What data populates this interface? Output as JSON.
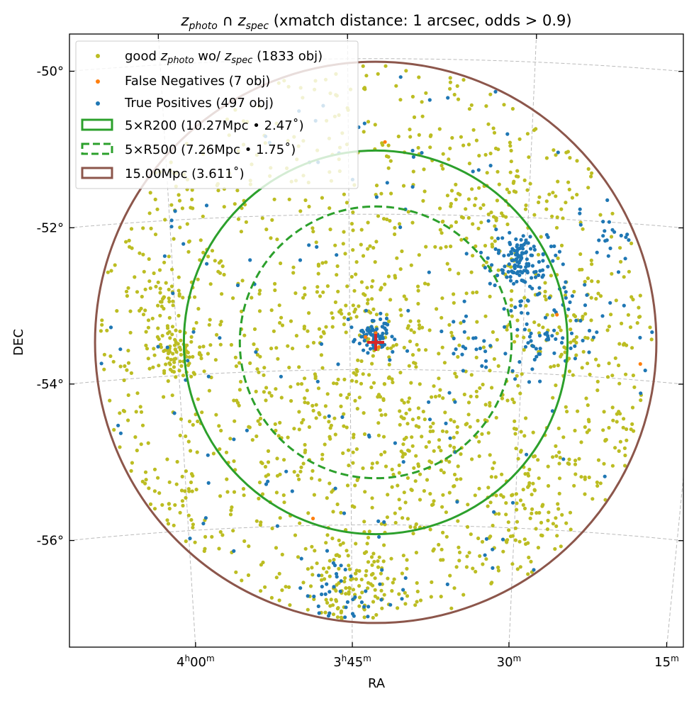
{
  "chart_data": {
    "type": "scatter",
    "title": {
      "z1": "z",
      "s1": "photo",
      "mid": " ∩ ",
      "z2": "z",
      "s2": "spec",
      "rest": " (xmatch distance: 1 arcsec, odds > 0.9)"
    },
    "xlabel": "RA",
    "ylabel": "DEC",
    "projection_center": {
      "ra_deg": 55.69,
      "dec_deg": -53.65
    },
    "x_ticks": [
      {
        "ra_deg": 60.0,
        "h": "4",
        "m": "00",
        "label_h": "h",
        "label_m": "m"
      },
      {
        "ra_deg": 56.25,
        "h": "3",
        "m": "45",
        "label_h": "h",
        "label_m": "m"
      },
      {
        "ra_deg": 52.5,
        "h": "",
        "m": "30",
        "label_h": "",
        "label_m": "m"
      },
      {
        "ra_deg": 48.75,
        "h": "",
        "m": "15",
        "label_h": "",
        "label_m": "m"
      }
    ],
    "y_ticks": [
      {
        "dec_deg": -50,
        "label": "-50°"
      },
      {
        "dec_deg": -52,
        "label": "-52°"
      },
      {
        "dec_deg": -54,
        "label": "-54°"
      },
      {
        "dec_deg": -56,
        "label": "-56°"
      }
    ],
    "grid": true,
    "legend_position": "top-left",
    "series": [
      {
        "name_pre": "good ",
        "name_z1": "z",
        "name_s1": "photo",
        "name_mid": " wo/ ",
        "name_z2": "z",
        "name_s2": "spec",
        "name_post": " (1833 obj)",
        "count": 1833,
        "color": "#bcbd22",
        "kind": "points"
      },
      {
        "name": "False Negatives (7 obj)",
        "count": 7,
        "color": "#ff7f0e",
        "kind": "points",
        "points": [
          [
            55.5,
            -51.07
          ],
          [
            51.79,
            -53.23
          ],
          [
            49.92,
            -53.79
          ],
          [
            57.13,
            -55.91
          ],
          [
            55.69,
            -53.53
          ],
          [
            55.62,
            -53.71
          ],
          [
            55.91,
            -53.58
          ]
        ]
      },
      {
        "name": "True Positives (497 obj)",
        "count": 497,
        "color": "#1f77b4",
        "kind": "points"
      }
    ],
    "circles": [
      {
        "name": "5×R200 (10.27Mpc • 2.47$^\\circ$)",
        "label": "5×R200 (10.27Mpc • 2.47˚)",
        "radius_deg": 2.47,
        "color": "#2ca02c",
        "style": "solid"
      },
      {
        "name": "5×R500",
        "label": "5×R500 (7.26Mpc • 1.75˚)",
        "radius_deg": 1.75,
        "color": "#2ca02c",
        "style": "dashed"
      },
      {
        "name": "15Mpc",
        "label": "15.00Mpc (3.611˚)",
        "radius_deg": 3.611,
        "color": "#8c564b",
        "style": "solid"
      }
    ],
    "center_marker": {
      "color": "#d62728",
      "shape": "plus"
    }
  }
}
